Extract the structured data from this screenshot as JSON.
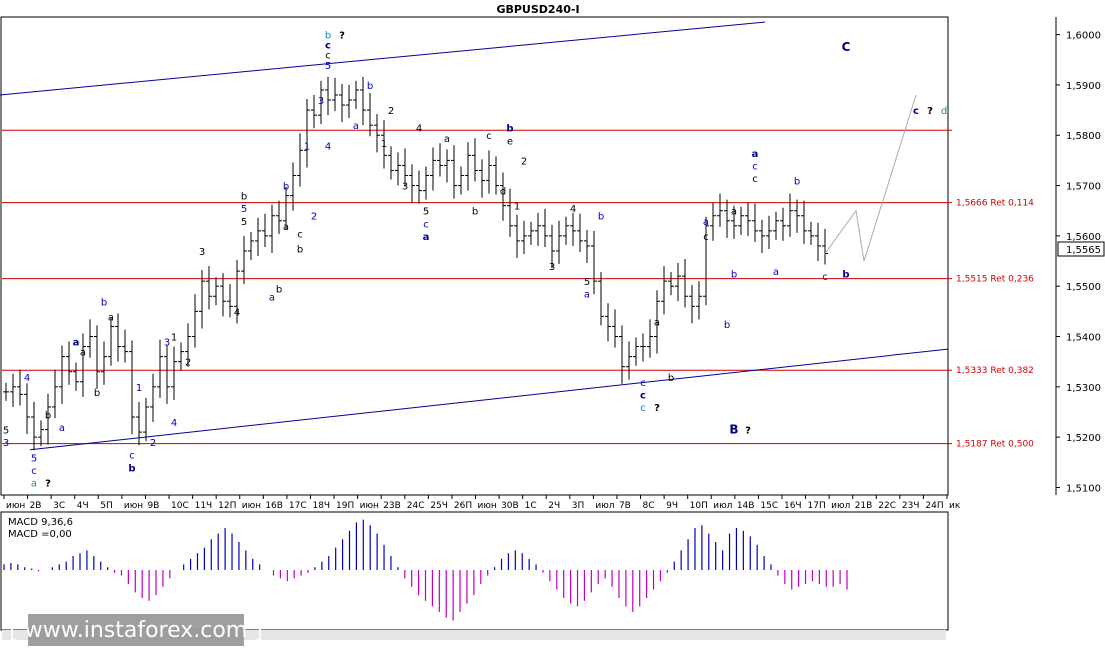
{
  "chart_data": {
    "type": "candlestick",
    "title": "GBPUSD240-I",
    "ylim": [
      1.5085,
      1.6035
    ],
    "yticks": [
      "1,5100",
      "1,5200",
      "1,5300",
      "1,5400",
      "1,5500",
      "1,5600",
      "1,5700",
      "1,5800",
      "1,5900",
      "1,6000"
    ],
    "ytick_values": [
      1.51,
      1.52,
      1.53,
      1.54,
      1.55,
      1.56,
      1.57,
      1.58,
      1.59,
      1.6
    ],
    "current_price_label": "1,5565",
    "current_price": 1.5565,
    "xticks": [
      "июн",
      "2В",
      "3С",
      "4Ч",
      "5П",
      "июн",
      "9В",
      "10С",
      "11Ч",
      "12П",
      "июн",
      "16В",
      "17С",
      "18Ч",
      "19П",
      "июн",
      "23В",
      "24С",
      "25Ч",
      "26П",
      "июн",
      "30В",
      "1С",
      "2Ч",
      "3П",
      "июл",
      "7В",
      "8С",
      "9Ч",
      "10П",
      "июл",
      "14В",
      "15С",
      "16Ч",
      "17П",
      "июл",
      "21В",
      "22С",
      "23Ч",
      "24П",
      "ик"
    ],
    "levels": [
      {
        "value": 1.581,
        "label": ""
      },
      {
        "value": 1.5666,
        "label": "1,5666 Ret 0,114"
      },
      {
        "value": 1.5515,
        "label": "1,5515 Ret 0,236"
      },
      {
        "value": 1.5333,
        "label": "1,5333 Ret 0,382"
      },
      {
        "value": 1.5187,
        "label": "1,5187 Ret 0,500"
      }
    ],
    "closes": [
      1.529,
      1.53,
      1.5285,
      1.524,
      1.52,
      1.5215,
      1.526,
      1.53,
      1.536,
      1.533,
      1.531,
      1.538,
      1.54,
      1.533,
      1.536,
      1.542,
      1.538,
      1.537,
      1.524,
      1.521,
      1.526,
      1.53,
      1.536,
      1.53,
      1.535,
      1.537,
      1.54,
      1.545,
      1.551,
      1.548,
      1.55,
      1.547,
      1.546,
      1.553,
      1.557,
      1.559,
      1.561,
      1.56,
      1.564,
      1.563,
      1.568,
      1.572,
      1.577,
      1.585,
      1.584,
      1.589,
      1.587,
      1.588,
      1.586,
      1.587,
      1.589,
      1.585,
      1.582,
      1.58,
      1.576,
      1.573,
      1.574,
      1.572,
      1.57,
      1.569,
      1.572,
      1.575,
      1.574,
      1.575,
      1.57,
      1.572,
      1.576,
      1.573,
      1.571,
      1.574,
      1.57,
      1.566,
      1.562,
      1.559,
      1.56,
      1.561,
      1.562,
      1.56,
      1.557,
      1.56,
      1.562,
      1.561,
      1.559,
      1.558,
      1.551,
      1.544,
      1.542,
      1.54,
      1.534,
      1.536,
      1.538,
      1.538,
      1.54,
      1.547,
      1.551,
      1.55,
      1.552,
      1.548,
      1.546,
      1.548,
      1.562,
      1.564,
      1.565,
      1.563,
      1.562,
      1.564,
      1.563,
      1.561,
      1.56,
      1.561,
      1.563,
      1.562,
      1.565,
      1.564,
      1.561,
      1.56,
      1.558,
      1.5565
    ],
    "projection": [
      [
        1.5565,
        1.56
      ],
      [
        1.565,
        1.555
      ],
      [
        1.59,
        1.59
      ]
    ],
    "wave_labels": [
      {
        "text": "4",
        "i": 3,
        "p": 1.532,
        "c": "blue"
      },
      {
        "text": "5",
        "i": 0,
        "p": 1.5215,
        "c": "black"
      },
      {
        "text": "3",
        "i": 0,
        "p": 1.519,
        "c": "blue"
      },
      {
        "text": "5",
        "i": 4,
        "p": 1.516,
        "c": "blue"
      },
      {
        "text": "c",
        "i": 4,
        "p": 1.5135,
        "c": "blue"
      },
      {
        "text": "a",
        "i": 4,
        "p": 1.511,
        "c": "teal"
      },
      {
        "text": "?",
        "i": 6,
        "p": 1.511,
        "c": "black"
      },
      {
        "text": "b",
        "i": 6,
        "p": 1.5245,
        "c": "black"
      },
      {
        "text": "a",
        "i": 8,
        "p": 1.522,
        "c": "blue"
      },
      {
        "text": "a",
        "i": 10,
        "p": 1.539,
        "c": "navy"
      },
      {
        "text": "a",
        "i": 11,
        "p": 1.537,
        "c": "black"
      },
      {
        "text": "b",
        "i": 13,
        "p": 1.529,
        "c": "black"
      },
      {
        "text": "b",
        "i": 14,
        "p": 1.547,
        "c": "blue"
      },
      {
        "text": "a",
        "i": 15,
        "p": 1.544,
        "c": "black"
      },
      {
        "text": "c",
        "i": 18,
        "p": 1.5165,
        "c": "blue"
      },
      {
        "text": "b",
        "i": 18,
        "p": 1.514,
        "c": "navy"
      },
      {
        "text": "1",
        "i": 19,
        "p": 1.53,
        "c": "blue"
      },
      {
        "text": "2",
        "i": 21,
        "p": 1.519,
        "c": "blue"
      },
      {
        "text": "4",
        "i": 24,
        "p": 1.523,
        "c": "blue"
      },
      {
        "text": "3",
        "i": 23,
        "p": 1.539,
        "c": "blue"
      },
      {
        "text": "1",
        "i": 24,
        "p": 1.54,
        "c": "black"
      },
      {
        "text": "2",
        "i": 26,
        "p": 1.535,
        "c": "black"
      },
      {
        "text": "3",
        "i": 28,
        "p": 1.557,
        "c": "black"
      },
      {
        "text": "4",
        "i": 33,
        "p": 1.545,
        "c": "black"
      },
      {
        "text": "b",
        "i": 34,
        "p": 1.568,
        "c": "black"
      },
      {
        "text": "5",
        "i": 34,
        "p": 1.5655,
        "c": "blue"
      },
      {
        "text": "5",
        "i": 34,
        "p": 1.563,
        "c": "black"
      },
      {
        "text": "a",
        "i": 38,
        "p": 1.548,
        "c": "blue"
      },
      {
        "text": "b",
        "i": 39,
        "p": 1.5495,
        "c": "black"
      },
      {
        "text": "a",
        "i": 40,
        "p": 1.562,
        "c": "black"
      },
      {
        "text": "b",
        "i": 40,
        "p": 1.57,
        "c": "blue"
      },
      {
        "text": "c",
        "i": 42,
        "p": 1.5605,
        "c": "black"
      },
      {
        "text": "b",
        "i": 42,
        "p": 1.5575,
        "c": "black"
      },
      {
        "text": "1",
        "i": 43,
        "p": 1.578,
        "c": "blue"
      },
      {
        "text": "2",
        "i": 44,
        "p": 1.564,
        "c": "blue"
      },
      {
        "text": "3",
        "i": 45,
        "p": 1.587,
        "c": "blue"
      },
      {
        "text": "4",
        "i": 46,
        "p": 1.578,
        "c": "blue"
      },
      {
        "text": "b",
        "i": 46,
        "p": 1.6,
        "c": "teal"
      },
      {
        "text": "?",
        "i": 48,
        "p": 1.6,
        "c": "black"
      },
      {
        "text": "c",
        "i": 46,
        "p": 1.598,
        "c": "navy"
      },
      {
        "text": "c",
        "i": 46,
        "p": 1.596,
        "c": "black"
      },
      {
        "text": "5",
        "i": 46,
        "p": 1.594,
        "c": "blue"
      },
      {
        "text": "a",
        "i": 50,
        "p": 1.582,
        "c": "blue"
      },
      {
        "text": "b",
        "i": 52,
        "p": 1.59,
        "c": "blue"
      },
      {
        "text": "1",
        "i": 54,
        "p": 1.5785,
        "c": "black"
      },
      {
        "text": "2",
        "i": 55,
        "p": 1.585,
        "c": "black"
      },
      {
        "text": "4",
        "i": 59,
        "p": 1.5815,
        "c": "black"
      },
      {
        "text": "3",
        "i": 57,
        "p": 1.57,
        "c": "black"
      },
      {
        "text": "5",
        "i": 60,
        "p": 1.565,
        "c": "black"
      },
      {
        "text": "c",
        "i": 60,
        "p": 1.5625,
        "c": "blue"
      },
      {
        "text": "a",
        "i": 60,
        "p": 1.56,
        "c": "navy"
      },
      {
        "text": "a",
        "i": 63,
        "p": 1.5795,
        "c": "black"
      },
      {
        "text": "b",
        "i": 67,
        "p": 1.565,
        "c": "black"
      },
      {
        "text": "c",
        "i": 69,
        "p": 1.58,
        "c": "black"
      },
      {
        "text": "d",
        "i": 71,
        "p": 1.569,
        "c": "black"
      },
      {
        "text": "e",
        "i": 72,
        "p": 1.579,
        "c": "black"
      },
      {
        "text": "b",
        "i": 72,
        "p": 1.5815,
        "c": "navy"
      },
      {
        "text": "2",
        "i": 74,
        "p": 1.575,
        "c": "black"
      },
      {
        "text": "1",
        "i": 73,
        "p": 1.566,
        "c": "black"
      },
      {
        "text": "3",
        "i": 78,
        "p": 1.554,
        "c": "black"
      },
      {
        "text": "4",
        "i": 81,
        "p": 1.5655,
        "c": "black"
      },
      {
        "text": "5",
        "i": 83,
        "p": 1.551,
        "c": "black"
      },
      {
        "text": "a",
        "i": 83,
        "p": 1.5485,
        "c": "blue"
      },
      {
        "text": "b",
        "i": 85,
        "p": 1.564,
        "c": "blue"
      },
      {
        "text": "c",
        "i": 91,
        "p": 1.531,
        "c": "blue"
      },
      {
        "text": "c",
        "i": 91,
        "p": 1.5285,
        "c": "navy"
      },
      {
        "text": "c",
        "i": 91,
        "p": 1.526,
        "c": "teal"
      },
      {
        "text": "?",
        "i": 93,
        "p": 1.526,
        "c": "black"
      },
      {
        "text": "a",
        "i": 93,
        "p": 1.543,
        "c": "black"
      },
      {
        "text": "b",
        "i": 95,
        "p": 1.532,
        "c": "black"
      },
      {
        "text": "a",
        "i": 100,
        "p": 1.563,
        "c": "blue"
      },
      {
        "text": "c",
        "i": 100,
        "p": 1.56,
        "c": "black"
      },
      {
        "text": "b",
        "i": 103,
        "p": 1.5425,
        "c": "blue"
      },
      {
        "text": "a",
        "i": 104,
        "p": 1.565,
        "c": "black"
      },
      {
        "text": "b",
        "i": 104,
        "p": 1.5525,
        "c": "blue"
      },
      {
        "text": "a",
        "i": 107,
        "p": 1.5765,
        "c": "navy"
      },
      {
        "text": "c",
        "i": 107,
        "p": 1.574,
        "c": "blue"
      },
      {
        "text": "c",
        "i": 107,
        "p": 1.5715,
        "c": "black"
      },
      {
        "text": "a",
        "i": 110,
        "p": 1.553,
        "c": "blue"
      },
      {
        "text": "b",
        "i": 113,
        "p": 1.571,
        "c": "blue"
      },
      {
        "text": "c",
        "i": 117,
        "p": 1.552,
        "c": "blue"
      },
      {
        "text": "b",
        "i": 120,
        "p": 1.5525,
        "c": "navy"
      },
      {
        "text": "B",
        "i": 104,
        "p": 1.5215,
        "c": "navy"
      },
      {
        "text": "?",
        "i": 106,
        "p": 1.5215,
        "c": "black"
      },
      {
        "text": "C",
        "i": 120,
        "p": 1.5975,
        "c": "navy"
      },
      {
        "text": "c",
        "i": 130,
        "p": 1.585,
        "c": "navy"
      },
      {
        "text": "?",
        "i": 132,
        "p": 1.585,
        "c": "black"
      },
      {
        "text": "d",
        "i": 134,
        "p": 1.585,
        "c": "teal"
      }
    ],
    "macd_label": "MACD 9,36,6",
    "macd_value_label": "MACD =0,00",
    "macd": [
      4,
      5,
      4,
      2,
      1,
      -1,
      0,
      2,
      4,
      6,
      10,
      12,
      14,
      10,
      6,
      2,
      -2,
      -4,
      -10,
      -16,
      -20,
      -22,
      -18,
      -12,
      -6,
      0,
      4,
      8,
      12,
      16,
      22,
      26,
      30,
      26,
      20,
      14,
      8,
      4,
      0,
      -4,
      -6,
      -8,
      -6,
      -4,
      -2,
      2,
      6,
      10,
      16,
      22,
      28,
      34,
      36,
      32,
      26,
      18,
      10,
      2,
      -6,
      -12,
      -18,
      -22,
      -26,
      -30,
      -34,
      -36,
      -30,
      -24,
      -18,
      -10,
      -4,
      2,
      8,
      12,
      14,
      12,
      8,
      4,
      -2,
      -8,
      -14,
      -20,
      -24,
      -26,
      -22,
      -16,
      -10,
      -6,
      -12,
      -20,
      -26,
      -30,
      -26,
      -20,
      -14,
      -8,
      -2,
      6,
      14,
      22,
      30,
      32,
      26,
      20,
      14,
      26,
      30,
      28,
      24,
      18,
      10,
      4,
      -4,
      -10,
      -14,
      -12,
      -10,
      -8,
      -10,
      -12,
      -12,
      -10,
      -14
    ]
  },
  "watermark": "www.instaforex.com",
  "colors": {
    "levels": "#d00000",
    "channel": "#0000a0",
    "macd_pos": "#0000c0",
    "macd_neg": "#c000c0",
    "projection": "#aaaaaa"
  }
}
